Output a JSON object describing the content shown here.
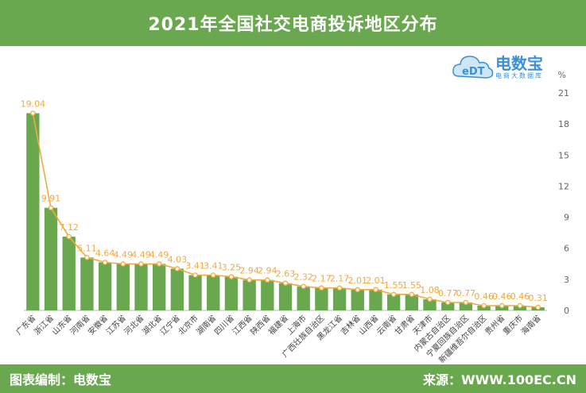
{
  "header": {
    "title": "2021年全国社交电商投诉地区分布"
  },
  "logo": {
    "name": "电数宝",
    "sub": "电商大数据库",
    "badge": "eDT"
  },
  "footer": {
    "left": "图表编制：电数宝",
    "right": "来源：WWW.100EC.CN"
  },
  "colors": {
    "bar": "#6aa84f",
    "line": "#f2a93b",
    "header": "#6aa84f"
  },
  "chart_data": {
    "type": "bar",
    "unit": "%",
    "ylim": [
      0,
      21
    ],
    "yticks": [
      0,
      3,
      6,
      9,
      12,
      15,
      18,
      21
    ],
    "grid": false,
    "categories": [
      "广东省",
      "浙江省",
      "山东省",
      "河南省",
      "安徽省",
      "江苏省",
      "河北省",
      "湖北省",
      "辽宁省",
      "北京市",
      "湖南省",
      "四川省",
      "江西省",
      "陕西省",
      "福建省",
      "上海市",
      "广西壮族自治区",
      "黑龙江省",
      "吉林省",
      "山西省",
      "云南省",
      "甘肃省",
      "天津市",
      "内蒙古自治区",
      "宁夏回族自治区",
      "新疆维吾尔自治区",
      "贵州省",
      "重庆市",
      "海南省"
    ],
    "values": [
      19.04,
      9.91,
      7.12,
      5.11,
      4.64,
      4.49,
      4.49,
      4.49,
      4.03,
      3.41,
      3.41,
      3.25,
      2.94,
      2.94,
      2.63,
      2.32,
      2.17,
      2.17,
      2.01,
      2.01,
      1.55,
      1.55,
      1.08,
      0.77,
      0.77,
      0.46,
      0.46,
      0.46,
      0.31
    ],
    "line_overlay": true
  }
}
